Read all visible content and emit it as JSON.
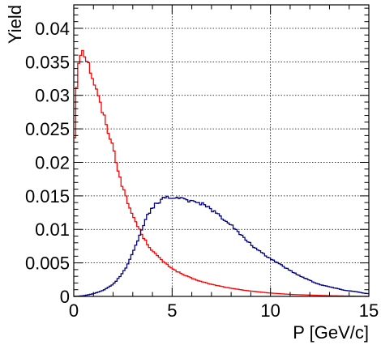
{
  "chart_data": {
    "type": "histogram",
    "title": "",
    "xlabel": "P [GeV/c]",
    "ylabel": "Yield",
    "xlim": [
      0,
      15
    ],
    "ylim": [
      0,
      0.0435
    ],
    "grid": true,
    "x_ticks": [
      {
        "value": 0,
        "label": "0"
      },
      {
        "value": 5,
        "label": "5"
      },
      {
        "value": 10,
        "label": "10"
      },
      {
        "value": 15,
        "label": "15"
      }
    ],
    "y_ticks": [
      {
        "value": 0,
        "label": "0"
      },
      {
        "value": 0.005,
        "label": "0.005"
      },
      {
        "value": 0.01,
        "label": "0.01"
      },
      {
        "value": 0.015,
        "label": "0.015"
      },
      {
        "value": 0.02,
        "label": "0.02"
      },
      {
        "value": 0.025,
        "label": "0.025"
      },
      {
        "value": 0.03,
        "label": "0.03"
      },
      {
        "value": 0.035,
        "label": "0.035"
      },
      {
        "value": 0.04,
        "label": "0.04"
      }
    ],
    "series": [
      {
        "color": "#ff0000",
        "x": [
          0.0,
          0.1,
          0.2,
          0.3,
          0.4,
          0.5,
          0.6,
          0.8,
          1.0,
          1.2,
          1.4,
          1.6,
          1.8,
          2.0,
          2.2,
          2.4,
          2.6,
          2.8,
          3.0,
          3.2,
          3.4,
          3.6,
          3.8,
          4.0,
          4.4,
          4.8,
          5.2,
          5.6,
          6.0,
          6.5,
          7.0,
          7.5,
          8.0,
          9.0,
          10.0,
          11.0,
          12.0,
          13.0,
          14.0,
          15.0
        ],
        "values": [
          0.0185,
          0.029,
          0.034,
          0.0362,
          0.0368,
          0.0366,
          0.0358,
          0.0342,
          0.0322,
          0.0302,
          0.0282,
          0.0262,
          0.0242,
          0.0222,
          0.0196,
          0.0172,
          0.0152,
          0.0135,
          0.0121,
          0.0108,
          0.0096,
          0.0085,
          0.0076,
          0.0068,
          0.0056,
          0.0046,
          0.0038,
          0.0032,
          0.0027,
          0.0022,
          0.0018,
          0.0015,
          0.0012,
          0.0008,
          0.0005,
          0.0003,
          0.0002,
          0.0001,
          5e-05,
          0.0
        ]
      },
      {
        "color": "#000080",
        "x": [
          0.0,
          0.5,
          1.0,
          1.5,
          2.0,
          2.3,
          2.6,
          2.9,
          3.1,
          3.3,
          3.5,
          3.7,
          3.9,
          4.1,
          4.3,
          4.5,
          4.7,
          4.9,
          5.1,
          5.3,
          5.5,
          5.7,
          5.9,
          6.1,
          6.3,
          6.5,
          6.7,
          6.9,
          7.2,
          7.5,
          7.8,
          8.1,
          8.4,
          8.7,
          9.0,
          9.3,
          9.6,
          9.9,
          10.2,
          10.5,
          10.8,
          11.1,
          11.4,
          11.7,
          12.0,
          12.3,
          12.6,
          12.9,
          13.2,
          13.5,
          13.8,
          14.1,
          14.4,
          14.7,
          15.0
        ],
        "values": [
          0.0,
          0.0001,
          0.0004,
          0.0009,
          0.0018,
          0.0028,
          0.004,
          0.0058,
          0.0072,
          0.0088,
          0.0104,
          0.0118,
          0.0128,
          0.0136,
          0.014,
          0.0145,
          0.0148,
          0.0145,
          0.015,
          0.0146,
          0.0148,
          0.0145,
          0.0142,
          0.0144,
          0.014,
          0.0138,
          0.0136,
          0.0131,
          0.0126,
          0.0118,
          0.0112,
          0.0104,
          0.0094,
          0.0086,
          0.0078,
          0.007,
          0.0064,
          0.0058,
          0.0053,
          0.0048,
          0.0042,
          0.0037,
          0.0032,
          0.0028,
          0.0024,
          0.002,
          0.0017,
          0.0015,
          0.0013,
          0.0011,
          0.0009,
          0.0008,
          0.0007,
          0.0005,
          0.0004
        ]
      }
    ]
  }
}
